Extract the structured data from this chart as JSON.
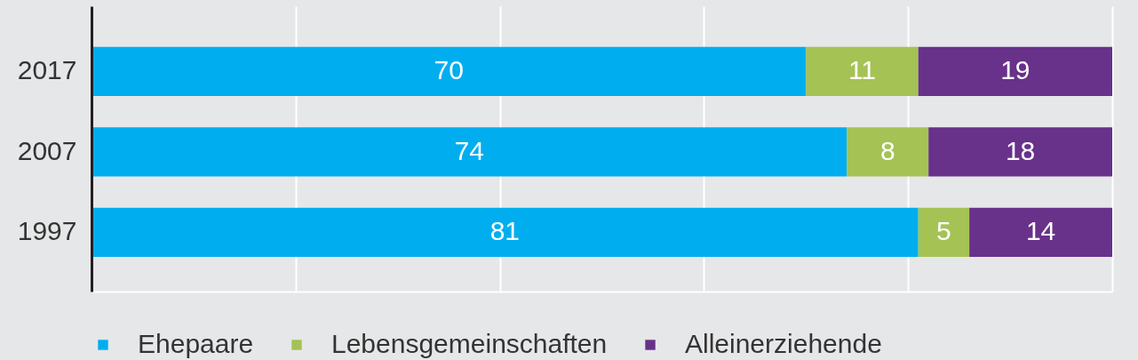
{
  "chart_data": {
    "type": "bar",
    "orientation": "horizontal",
    "stacked": true,
    "categories": [
      "2017",
      "2007",
      "1997"
    ],
    "series": [
      {
        "name": "Ehepaare",
        "color": "#00aeef",
        "values": [
          70,
          74,
          81
        ]
      },
      {
        "name": "Lebensgemeinschaften",
        "color": "#a5c255",
        "values": [
          11,
          8,
          5
        ]
      },
      {
        "name": "Alleinerziehende",
        "color": "#68318a",
        "values": [
          19,
          18,
          14
        ]
      }
    ],
    "data_labels": true,
    "xlim": [
      0,
      100
    ],
    "xticks": [
      0,
      20,
      40,
      60,
      80,
      100
    ],
    "grid": "x",
    "legend": "bottom",
    "tick_labels": "y"
  }
}
